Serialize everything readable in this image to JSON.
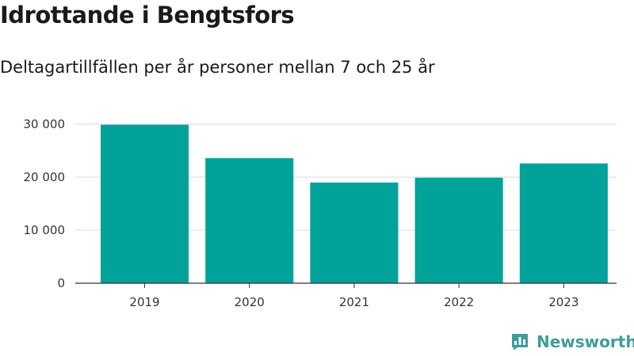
{
  "header": {
    "title": "Idrottande i Bengtsfors",
    "subtitle": "Deltagartillfällen per år personer mellan 7 och 25 år"
  },
  "brand": {
    "name": "Newsworthy",
    "color": "#3f9d9a",
    "icon": "newsworthy-logo-icon"
  },
  "chart_data": {
    "type": "bar",
    "title": "Idrottande i Bengtsfors",
    "subtitle": "Deltagartillfällen per år personer mellan 7 och 25 år",
    "xlabel": "",
    "ylabel": "",
    "categories": [
      "2019",
      "2020",
      "2021",
      "2022",
      "2023"
    ],
    "values": [
      29900,
      23600,
      19000,
      19900,
      22600
    ],
    "ylim": [
      0,
      30000
    ],
    "yticks": [
      0,
      10000,
      20000,
      30000
    ],
    "ytick_labels": [
      "0",
      "10 000",
      "20 000",
      "30 000"
    ],
    "grid": true,
    "legend": "none",
    "bar_color": "#00a29a"
  }
}
